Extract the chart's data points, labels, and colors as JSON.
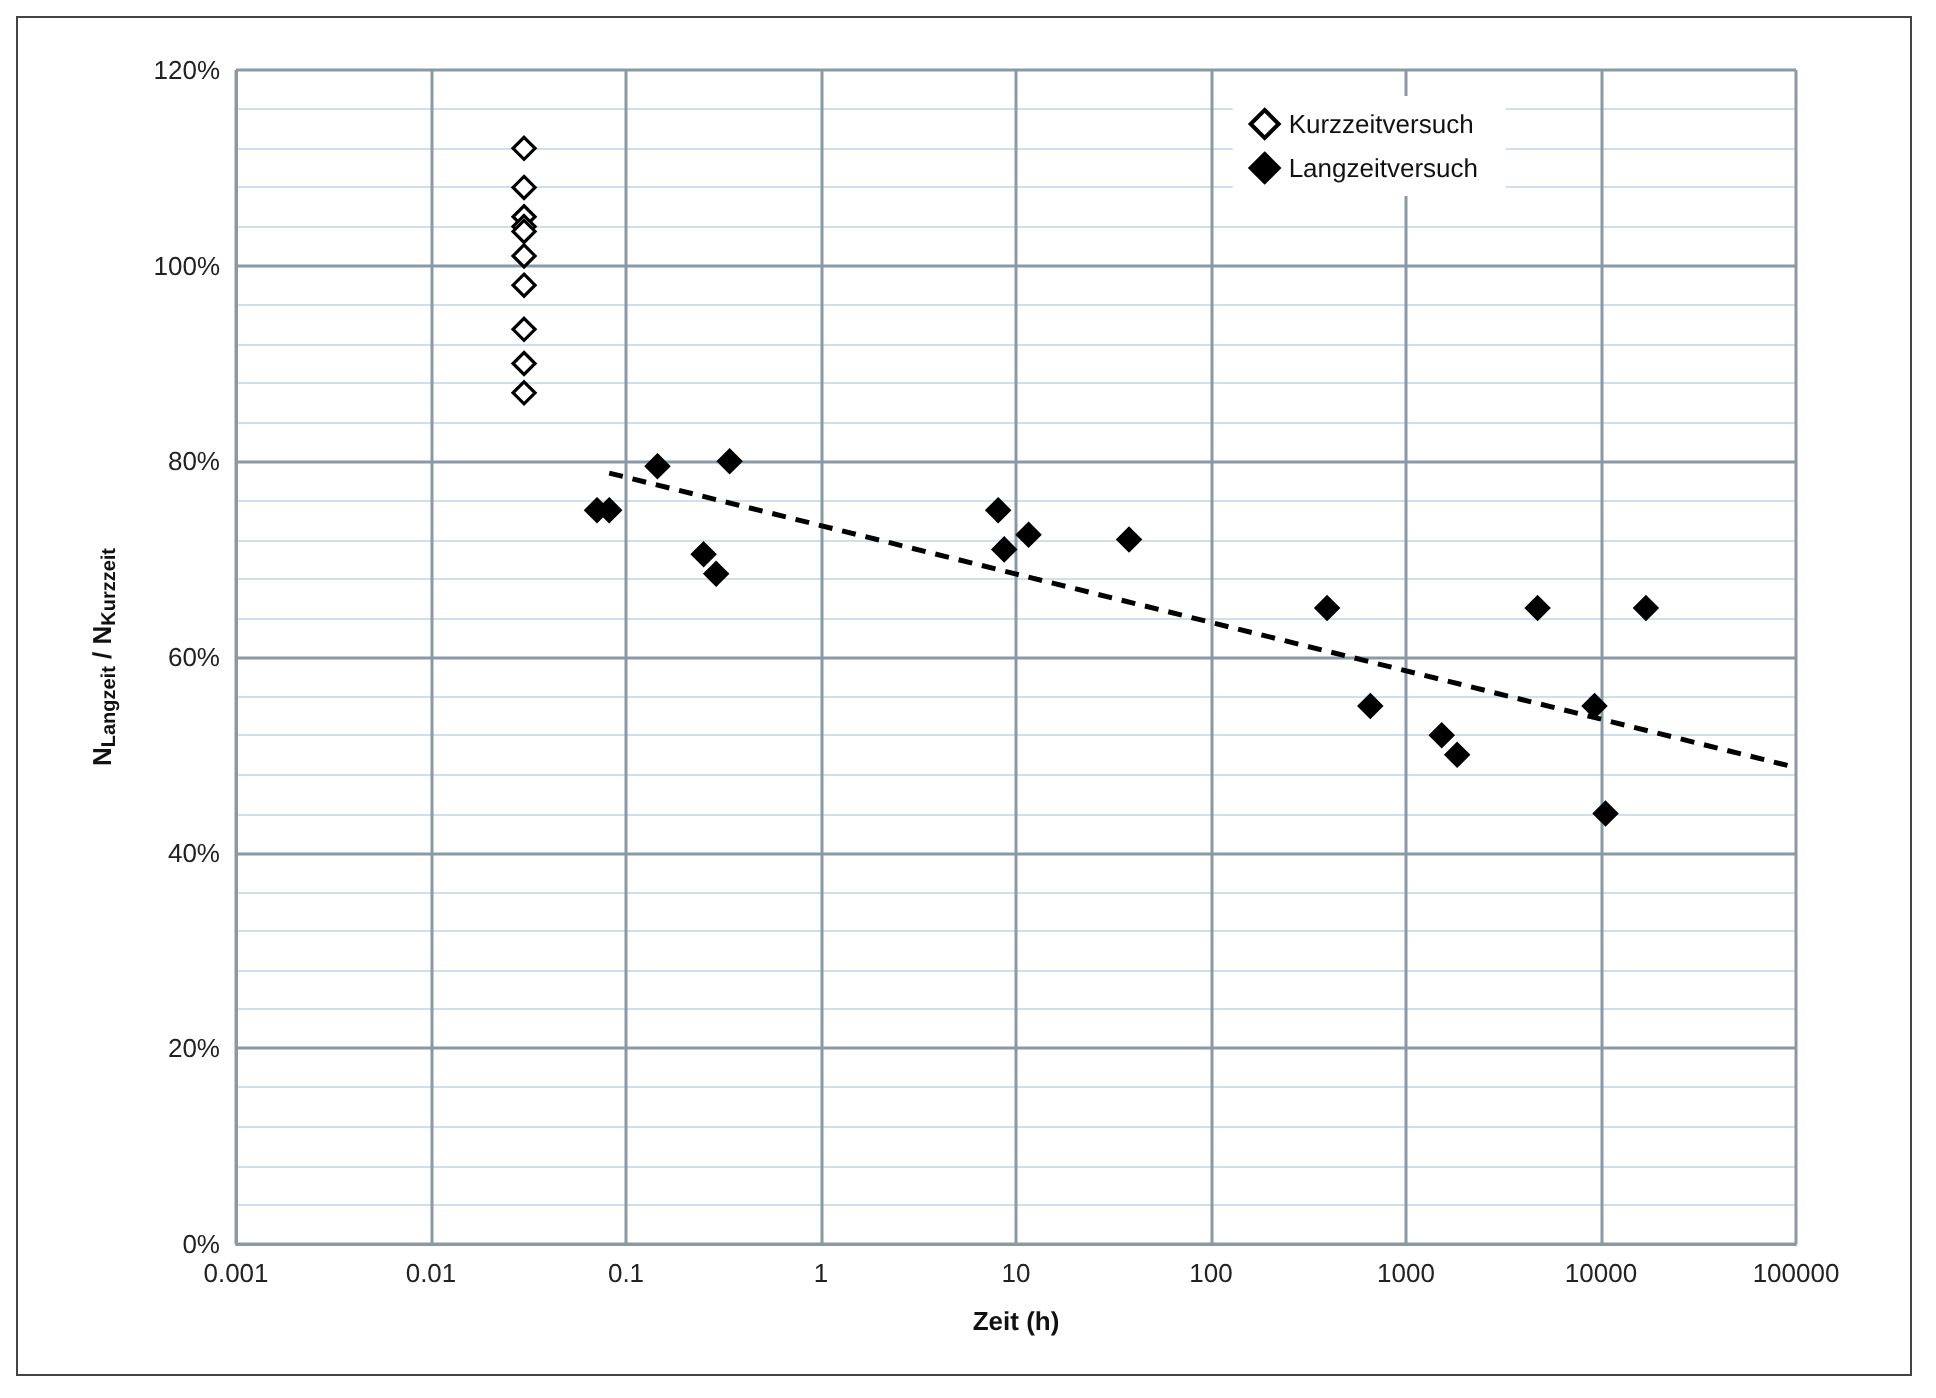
{
  "chart_data": {
    "type": "scatter",
    "xlabel": "Zeit (h)",
    "ylabel": "N$_{Langzeit}$ / N$_{Kurzzeit}$",
    "log": "x",
    "xlim": [
      0.001,
      100000
    ],
    "xticks": [
      0.001,
      0.01,
      0.1,
      1,
      10,
      100,
      1000,
      10000,
      100000
    ],
    "ylim": [
      0,
      120
    ],
    "yticks": [
      {
        "value": 0,
        "label": "0%"
      },
      {
        "value": 20,
        "label": "20%"
      },
      {
        "value": 40,
        "label": "40%"
      },
      {
        "value": 60,
        "label": "60%"
      },
      {
        "value": 80,
        "label": "80%"
      },
      {
        "value": 100,
        "label": "100%"
      },
      {
        "value": 120,
        "label": "120%"
      }
    ],
    "grid": true,
    "legend": "top right",
    "marker": "diamond",
    "series": [
      {
        "name": "Kurzzeitversuch",
        "color": "#ffffff",
        "x": [
          0.03,
          0.03,
          0.03,
          0.03,
          0.03,
          0.03,
          0.03,
          0.03,
          0.03,
          0.03
        ],
        "values": [
          112,
          108,
          105,
          104,
          103.5,
          101,
          98,
          93.5,
          90,
          87
        ]
      },
      {
        "name": "Langzeitversuch",
        "color": "#000000",
        "x": [
          0.071,
          0.082,
          0.145,
          0.34,
          0.25,
          0.29,
          8.1,
          8.7,
          11.6,
          38,
          394,
          656,
          1525,
          1830,
          4730,
          17000,
          9260,
          10550
        ],
        "values": [
          75,
          75,
          79.5,
          80,
          70.5,
          68.5,
          75,
          71,
          72.5,
          72,
          65,
          55,
          52,
          50,
          65,
          65,
          55,
          44
        ]
      },
      {
        "type": "line",
        "color": "#000000",
        "line_style": "dashed",
        "marker": "none",
        "x": [
          0.082,
          100000
        ],
        "values": [
          78.8,
          48.7
        ]
      }
    ]
  }
}
